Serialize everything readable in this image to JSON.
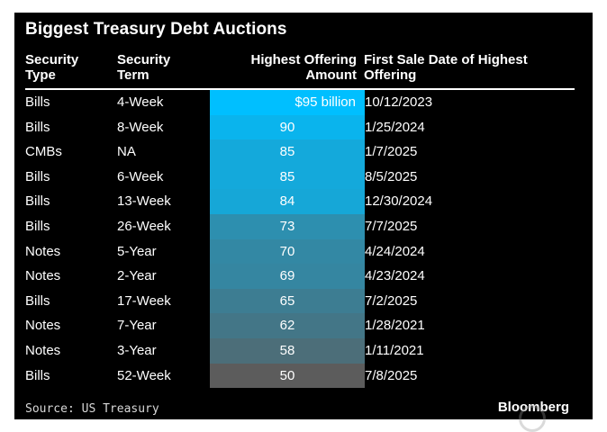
{
  "title": "Biggest Treasury Debt Auctions",
  "headers": {
    "type_1": "Security",
    "type_2": "Type",
    "term_1": "Security",
    "term_2": "Term",
    "amount_1": "Highest Offering",
    "amount_2": "Amount",
    "date_1": "First Sale Date of Highest",
    "date_2": "Offering"
  },
  "source": "Source: US Treasury",
  "brand": "Bloomberg",
  "colors": {
    "high": "#00bfff",
    "low": "#5c5c5c"
  },
  "chart_data": {
    "type": "table",
    "title": "Biggest Treasury Debt Auctions",
    "columns": [
      "Security Type",
      "Security Term",
      "Highest Offering Amount",
      "First Sale Date of Highest Offering"
    ],
    "rows": [
      {
        "type": "Bills",
        "term": "4-Week",
        "amount": 95,
        "amount_label": "$95 billion",
        "date": "10/12/2023"
      },
      {
        "type": "Bills",
        "term": "8-Week",
        "amount": 90,
        "amount_label": "90",
        "date": "1/25/2024"
      },
      {
        "type": "CMBs",
        "term": "NA",
        "amount": 85,
        "amount_label": "85",
        "date": "1/7/2025"
      },
      {
        "type": "Bills",
        "term": "6-Week",
        "amount": 85,
        "amount_label": "85",
        "date": "8/5/2025"
      },
      {
        "type": "Bills",
        "term": "13-Week",
        "amount": 84,
        "amount_label": "84",
        "date": "12/30/2024"
      },
      {
        "type": "Bills",
        "term": "26-Week",
        "amount": 73,
        "amount_label": "73",
        "date": "7/7/2025"
      },
      {
        "type": "Notes",
        "term": "5-Year",
        "amount": 70,
        "amount_label": "70",
        "date": "4/24/2024"
      },
      {
        "type": "Notes",
        "term": "2-Year",
        "amount": 69,
        "amount_label": "69",
        "date": "4/23/2024"
      },
      {
        "type": "Bills",
        "term": "17-Week",
        "amount": 65,
        "amount_label": "65",
        "date": "7/2/2025"
      },
      {
        "type": "Notes",
        "term": "7-Year",
        "amount": 62,
        "amount_label": "62",
        "date": "1/28/2021"
      },
      {
        "type": "Notes",
        "term": "3-Year",
        "amount": 58,
        "amount_label": "58",
        "date": "1/11/2021"
      },
      {
        "type": "Bills",
        "term": "52-Week",
        "amount": 50,
        "amount_label": "50",
        "date": "7/8/2025"
      }
    ]
  }
}
